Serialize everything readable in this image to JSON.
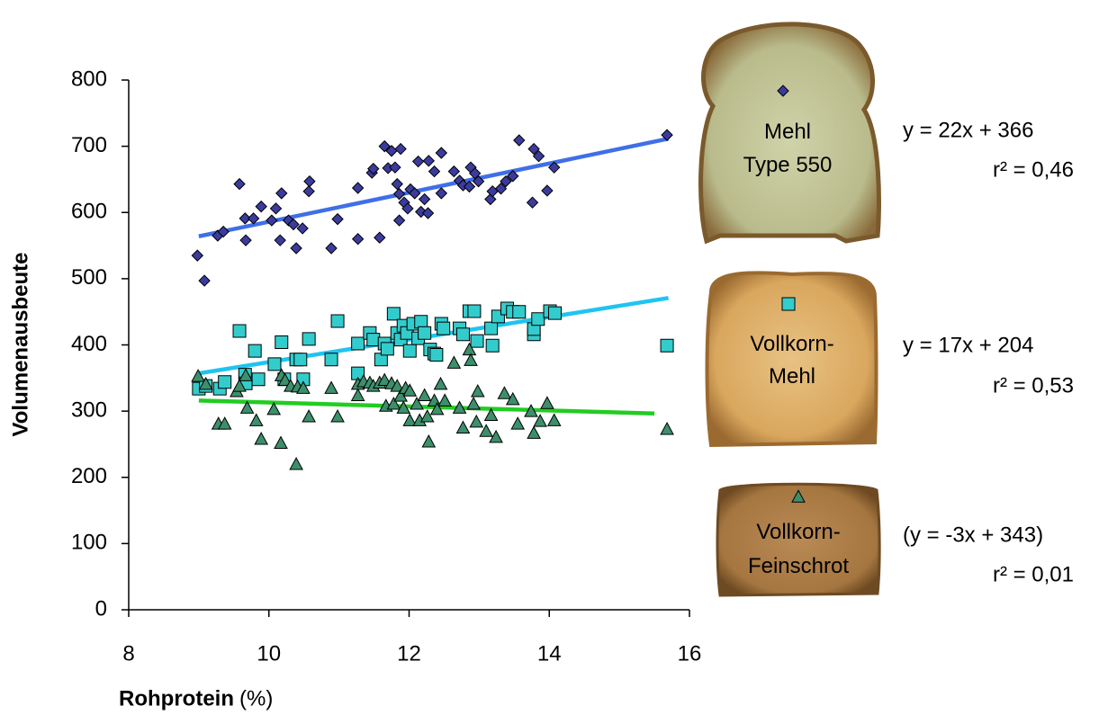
{
  "chart_data": {
    "type": "scatter",
    "xlabel": "Rohprotein",
    "xlabel_unit": "(%)",
    "ylabel": "Volumenausbeute",
    "xlim": [
      8,
      16
    ],
    "xticks": [
      8,
      10,
      12,
      14,
      16
    ],
    "ylim": [
      0,
      800
    ],
    "yticks": [
      0,
      100,
      200,
      300,
      400,
      500,
      600,
      700,
      800
    ],
    "series": [
      {
        "name": "Mehl Type 550",
        "color": "#3b3b9e",
        "marker": "diamond",
        "trend_color": "#3f6fe8",
        "trend": {
          "equation": "y = 22x + 366",
          "r2": "r² = 0,46",
          "slope": 22,
          "intercept": 366,
          "x_range": [
            9,
            15.7
          ]
        },
        "x": [
          8.98,
          9.08,
          9.27,
          9.35,
          9.58,
          9.66,
          9.67,
          9.78,
          9.89,
          10.04,
          10.1,
          10.18,
          10.16,
          10.28,
          10.35,
          10.39,
          10.48,
          10.57,
          10.58,
          10.89,
          10.98,
          11.27,
          11.27,
          11.47,
          11.49,
          11.58,
          11.65,
          11.7,
          11.75,
          11.8,
          11.88,
          11.83,
          11.86,
          11.86,
          11.93,
          11.98,
          12.02,
          12.08,
          12.13,
          12.17,
          12.22,
          12.27,
          12.28,
          12.36,
          12.46,
          12.46,
          12.64,
          12.72,
          12.77,
          12.86,
          12.88,
          12.94,
          12.99,
          13.16,
          13.19,
          13.31,
          13.38,
          13.48,
          13.57,
          13.76,
          13.78,
          13.85,
          13.97,
          14.07,
          15.68
        ],
        "values": [
          535,
          497,
          565,
          571,
          643,
          591,
          558,
          591,
          609,
          588,
          606,
          629,
          558,
          588,
          582,
          546,
          576,
          632,
          647,
          546,
          590,
          637,
          560,
          660,
          666,
          562,
          700,
          667,
          693,
          668,
          696,
          643,
          628,
          588,
          615,
          606,
          635,
          629,
          677,
          601,
          620,
          599,
          678,
          662,
          629,
          690,
          662,
          648,
          641,
          639,
          668,
          659,
          647,
          620,
          632,
          636,
          647,
          655,
          709,
          615,
          696,
          685,
          633,
          668,
          717
        ]
      },
      {
        "name": "Vollkorn-Mehl",
        "color": "#33cccc",
        "marker": "square",
        "trend_color": "#1fc4f0",
        "trend": {
          "equation": "y = 17x + 204",
          "r2": "r² = 0,53",
          "slope": 17,
          "intercept": 204,
          "x_range": [
            9,
            15.7
          ]
        },
        "x": [
          9.0,
          9.1,
          9.3,
          9.37,
          9.58,
          9.66,
          9.67,
          9.8,
          9.85,
          10.08,
          10.18,
          10.22,
          10.39,
          10.45,
          10.57,
          10.49,
          10.89,
          10.98,
          11.27,
          11.27,
          11.44,
          11.49,
          11.6,
          11.65,
          11.69,
          11.78,
          11.83,
          11.88,
          11.92,
          11.97,
          12.01,
          12.06,
          12.13,
          12.17,
          12.22,
          12.3,
          12.36,
          12.39,
          12.46,
          12.49,
          12.72,
          12.77,
          12.86,
          12.93,
          12.97,
          13.17,
          13.19,
          13.27,
          13.4,
          13.48,
          13.57,
          13.78,
          13.78,
          13.84,
          14.01,
          14.08,
          15.68
        ],
        "values": [
          334,
          338,
          334,
          344,
          421,
          355,
          342,
          391,
          348,
          371,
          404,
          348,
          378,
          378,
          409,
          348,
          378,
          436,
          402,
          357,
          418,
          408,
          378,
          402,
          394,
          447,
          418,
          408,
          429,
          418,
          391,
          432,
          410,
          435,
          418,
          393,
          387,
          385,
          432,
          425,
          425,
          416,
          451,
          451,
          406,
          425,
          399,
          443,
          455,
          450,
          450,
          416,
          424,
          439,
          451,
          448,
          399
        ]
      },
      {
        "name": "Vollkorn-Feinschrot",
        "color": "#3d8f6c",
        "marker": "triangle",
        "trend_color": "#22cc22",
        "trend": {
          "equation": "(y = -3x + 343)",
          "r2": "r² = 0,01",
          "slope": -3,
          "intercept": 343,
          "x_range": [
            9,
            15.5
          ]
        },
        "x": [
          8.99,
          9.1,
          9.28,
          9.37,
          9.54,
          9.58,
          9.67,
          9.69,
          9.82,
          9.89,
          10.07,
          10.17,
          10.18,
          10.23,
          10.31,
          10.39,
          10.41,
          10.49,
          10.57,
          10.89,
          10.98,
          11.27,
          11.27,
          11.35,
          11.44,
          11.49,
          11.58,
          11.65,
          11.67,
          11.75,
          11.78,
          11.83,
          11.88,
          11.92,
          11.95,
          12.01,
          12.01,
          12.11,
          12.15,
          12.22,
          12.26,
          12.28,
          12.36,
          12.4,
          12.45,
          12.51,
          12.64,
          12.72,
          12.77,
          12.86,
          12.88,
          12.92,
          12.96,
          12.98,
          13.1,
          13.17,
          13.24,
          13.36,
          13.48,
          13.55,
          13.74,
          13.78,
          13.87,
          13.97,
          14.07,
          15.68
        ],
        "values": [
          352,
          340,
          280,
          280,
          329,
          337,
          353,
          304,
          285,
          257,
          302,
          251,
          353,
          346,
          337,
          219,
          336,
          334,
          291,
          334,
          291,
          340,
          323,
          344,
          342,
          337,
          342,
          346,
          307,
          341,
          310,
          337,
          322,
          304,
          334,
          330,
          285,
          310,
          285,
          323,
          291,
          253,
          315,
          302,
          340,
          315,
          372,
          304,
          274,
          392,
          376,
          310,
          283,
          329,
          269,
          293,
          260,
          326,
          317,
          280,
          299,
          266,
          284,
          311,
          285,
          272
        ]
      }
    ]
  }
}
